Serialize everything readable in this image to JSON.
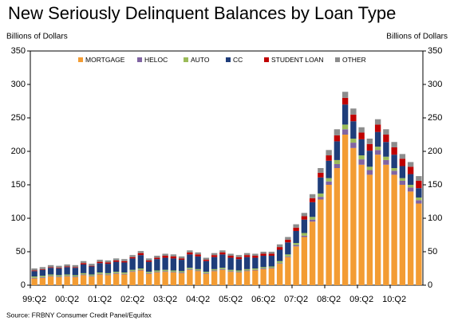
{
  "chart_data": {
    "type": "bar",
    "stacked": true,
    "title": "New Seriously Delinquent Balances by Loan Type",
    "y_label": "Billions of Dollars",
    "y2_label": "Billions of Dollars",
    "source": "Source: FRBNY Consumer Credit Panel/Equifax",
    "categories": [
      "99:Q2",
      null,
      null,
      null,
      "00:Q2",
      null,
      null,
      null,
      "01:Q2",
      null,
      null,
      null,
      "02:Q2",
      null,
      null,
      null,
      "03:Q2",
      null,
      null,
      null,
      "04:Q2",
      null,
      null,
      null,
      "05:Q2",
      null,
      null,
      null,
      "06:Q2",
      null,
      null,
      null,
      "07:Q2",
      null,
      null,
      null,
      "08:Q2",
      null,
      null,
      null,
      "09:Q2",
      null,
      null,
      null,
      "10:Q2",
      null,
      null,
      null
    ],
    "series": [
      {
        "name": "MORTGAGE",
        "color": "#f39c33",
        "values": [
          10,
          11,
          13,
          12,
          13,
          12,
          15,
          13,
          16,
          15,
          17,
          16,
          20,
          22,
          17,
          19,
          20,
          19,
          18,
          23,
          21,
          17,
          21,
          23,
          20,
          19,
          21,
          22,
          24,
          25,
          32,
          42,
          58,
          72,
          95,
          128,
          150,
          175,
          225,
          205,
          180,
          165,
          195,
          180,
          165,
          150,
          140,
          122
        ]
      },
      {
        "name": "HELOC",
        "color": "#8064a2",
        "values": [
          1,
          1,
          1,
          1,
          1,
          1,
          1,
          1,
          1,
          1,
          1,
          1,
          1,
          1,
          1,
          1,
          1,
          1,
          1,
          1,
          1,
          1,
          1,
          1,
          1,
          1,
          1,
          1,
          1,
          1,
          1,
          1,
          2,
          2,
          3,
          4,
          5,
          6,
          8,
          8,
          8,
          7,
          7,
          7,
          6,
          6,
          6,
          5
        ]
      },
      {
        "name": "AUTO",
        "color": "#9bbb59",
        "values": [
          2,
          2,
          2,
          2,
          2,
          2,
          2,
          2,
          2,
          2,
          2,
          2,
          2,
          2,
          2,
          2,
          2,
          2,
          2,
          2,
          2,
          2,
          2,
          2,
          2,
          2,
          2,
          2,
          2,
          2,
          3,
          3,
          3,
          4,
          4,
          5,
          5,
          6,
          7,
          6,
          6,
          5,
          5,
          5,
          4,
          4,
          4,
          4
        ]
      },
      {
        "name": "CC",
        "color": "#1f3d7a",
        "values": [
          8,
          9,
          10,
          10,
          11,
          11,
          13,
          12,
          14,
          14,
          15,
          15,
          17,
          20,
          15,
          17,
          18,
          18,
          17,
          20,
          19,
          16,
          18,
          20,
          18,
          17,
          18,
          16,
          17,
          16,
          17,
          18,
          18,
          20,
          22,
          24,
          26,
          28,
          30,
          26,
          24,
          24,
          22,
          22,
          20,
          18,
          16,
          14
        ]
      },
      {
        "name": "STUDENT LOAN",
        "color": "#c00000",
        "values": [
          1,
          1,
          1,
          1,
          1,
          1,
          2,
          1,
          2,
          2,
          2,
          2,
          2,
          3,
          2,
          2,
          3,
          3,
          2,
          3,
          3,
          2,
          3,
          3,
          3,
          3,
          3,
          3,
          3,
          3,
          4,
          4,
          5,
          5,
          6,
          7,
          8,
          9,
          10,
          10,
          10,
          10,
          11,
          11,
          11,
          11,
          11,
          11
        ]
      },
      {
        "name": "OTHER",
        "color": "#8c8c8c",
        "values": [
          3,
          3,
          3,
          3,
          3,
          3,
          3,
          3,
          3,
          3,
          3,
          3,
          3,
          3,
          3,
          3,
          3,
          3,
          3,
          3,
          3,
          3,
          3,
          3,
          3,
          3,
          3,
          3,
          3,
          3,
          4,
          4,
          5,
          5,
          6,
          7,
          8,
          9,
          9,
          9,
          8,
          8,
          8,
          8,
          8,
          7,
          7,
          7
        ]
      }
    ],
    "ylim": [
      0,
      350
    ],
    "yticks": [
      0,
      50,
      100,
      150,
      200,
      250,
      300,
      350
    ],
    "y2lim": [
      0,
      350
    ],
    "y2ticks": [
      0,
      50,
      100,
      150,
      200,
      250,
      300,
      350
    ],
    "grid": false,
    "legend": "top"
  }
}
